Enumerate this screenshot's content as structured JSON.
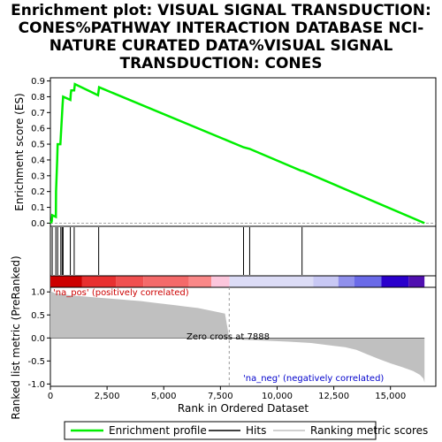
{
  "chart_data": {
    "type": "line",
    "title_lines": [
      "Enrichment plot: VISUAL SIGNAL TRANSDUCTION:",
      "CONES%PATHWAY INTERACTION DATABASE NCI-",
      "NATURE CURATED DATA%VISUAL SIGNAL",
      "TRANSDUCTION: CONES"
    ],
    "xlabel": "Rank in Ordered Dataset",
    "ylabel_top": "Enrichment score (ES)",
    "ylabel_bottom": "Ranked list metric (PreRanked)",
    "xlim": [
      0,
      17000
    ],
    "x_ticks": [
      0,
      2500,
      5000,
      7500,
      10000,
      12500,
      15000
    ],
    "x_tick_labels": [
      "0",
      "2,500",
      "5,000",
      "7,500",
      "10,000",
      "12,500",
      "15,000"
    ],
    "es_ylim": [
      -0.02,
      0.92
    ],
    "es_ticks": [
      0.0,
      0.1,
      0.2,
      0.3,
      0.4,
      0.5,
      0.6,
      0.7,
      0.8,
      0.9
    ],
    "es_tick_labels": [
      "0.0",
      "0.1",
      "0.2",
      "0.3",
      "0.4",
      "0.5",
      "0.6",
      "0.7",
      "0.8",
      "0.9"
    ],
    "metric_ylim": [
      -1.05,
      1.1
    ],
    "metric_ticks": [
      1.0,
      0.5,
      0.0,
      -0.5,
      -1.0
    ],
    "metric_tick_labels": [
      "1.0",
      "0.5",
      "0.0",
      "-0.5",
      "-1.0"
    ],
    "enrichment_profile": {
      "name": "Enrichment profile",
      "color": "#00ee00",
      "points": [
        [
          0,
          0.0
        ],
        [
          60,
          0.01
        ],
        [
          80,
          0.05
        ],
        [
          240,
          0.04
        ],
        [
          250,
          0.2
        ],
        [
          300,
          0.4
        ],
        [
          320,
          0.5
        ],
        [
          440,
          0.5
        ],
        [
          460,
          0.55
        ],
        [
          480,
          0.6
        ],
        [
          500,
          0.65
        ],
        [
          520,
          0.7
        ],
        [
          540,
          0.75
        ],
        [
          560,
          0.8
        ],
        [
          880,
          0.78
        ],
        [
          900,
          0.82
        ],
        [
          920,
          0.84
        ],
        [
          1050,
          0.84
        ],
        [
          1080,
          0.88
        ],
        [
          2100,
          0.81
        ],
        [
          2150,
          0.86
        ],
        [
          8520,
          0.48
        ],
        [
          8790,
          0.47
        ],
        [
          11080,
          0.33
        ],
        [
          11120,
          0.33
        ],
        [
          16500,
          0.0
        ]
      ]
    },
    "hits": {
      "name": "Hits",
      "positions": [
        80,
        240,
        320,
        460,
        520,
        560,
        880,
        1050,
        2130,
        8520,
        8790,
        11100
      ]
    },
    "ranking_metric": {
      "name": "Ranking metric scores",
      "color": "#c0c0c0",
      "points": [
        [
          0,
          1.02
        ],
        [
          200,
          0.97
        ],
        [
          600,
          0.94
        ],
        [
          1000,
          0.92
        ],
        [
          1500,
          0.9
        ],
        [
          2000,
          0.88
        ],
        [
          2500,
          0.86
        ],
        [
          3000,
          0.84
        ],
        [
          3500,
          0.82
        ],
        [
          4000,
          0.8
        ],
        [
          4500,
          0.77
        ],
        [
          5000,
          0.74
        ],
        [
          5500,
          0.71
        ],
        [
          6000,
          0.68
        ],
        [
          6500,
          0.65
        ],
        [
          7000,
          0.6
        ],
        [
          7400,
          0.56
        ],
        [
          7700,
          0.53
        ],
        [
          7888,
          0.0
        ],
        [
          8500,
          -0.04
        ],
        [
          9500,
          -0.06
        ],
        [
          10500,
          -0.08
        ],
        [
          11500,
          -0.11
        ],
        [
          12000,
          -0.14
        ],
        [
          12500,
          -0.17
        ],
        [
          13000,
          -0.2
        ],
        [
          13500,
          -0.26
        ],
        [
          14000,
          -0.36
        ],
        [
          14500,
          -0.46
        ],
        [
          15000,
          -0.55
        ],
        [
          15500,
          -0.63
        ],
        [
          16000,
          -0.72
        ],
        [
          16300,
          -0.8
        ],
        [
          16450,
          -0.88
        ],
        [
          16500,
          -0.97
        ]
      ]
    },
    "zero_cross_rank": 7888,
    "dataset_size": 16500,
    "heat_bar": [
      [
        0,
        "#cc0000"
      ],
      [
        1400,
        "#e83030"
      ],
      [
        2900,
        "#f05050"
      ],
      [
        4100,
        "#f46a6a"
      ],
      [
        6100,
        "#fa8888"
      ],
      [
        7100,
        "#fcc6dc"
      ],
      [
        7900,
        "#dcdcf6"
      ],
      [
        11600,
        "#c8c8f4"
      ],
      [
        12700,
        "#9090ec"
      ],
      [
        13400,
        "#6a6ae8"
      ],
      [
        14600,
        "#2a00cc"
      ],
      [
        15800,
        "#5010b0"
      ],
      [
        16500,
        "#5010b0"
      ]
    ],
    "annotations": {
      "pos": "'na_pos' (positively correlated)",
      "neg": "'na_neg' (negatively correlated)",
      "zero": "Zero cross at 7888"
    },
    "legend": {
      "enrichment": "Enrichment profile",
      "hits": "Hits",
      "ranking": "Ranking metric scores"
    }
  }
}
